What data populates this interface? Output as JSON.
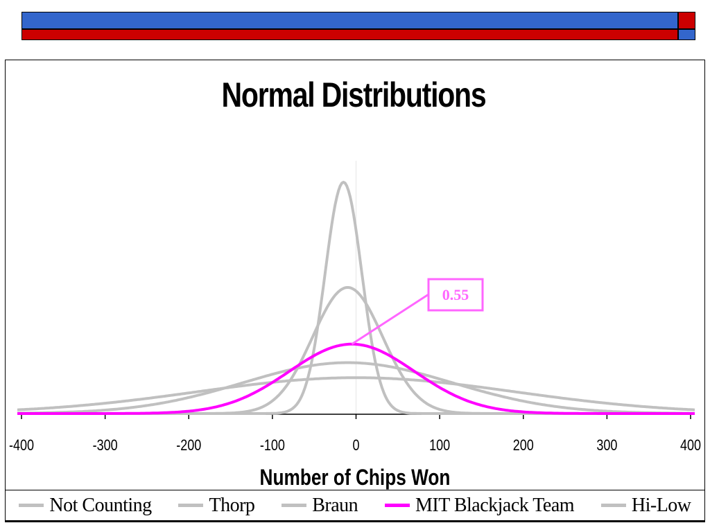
{
  "colors": {
    "band_blue": "#3366cc",
    "band_red": "#cc0000",
    "gray_series": "#c0c0c0",
    "mit_series": "#ff00ff",
    "callout": "#ff66ff"
  },
  "chart_data": {
    "type": "line",
    "title": "Normal Distributions",
    "xlabel": "Number of Chips Won",
    "ylabel": "",
    "xlim": [
      -400,
      400
    ],
    "x_ticks": [
      -400,
      -300,
      -200,
      -100,
      0,
      100,
      200,
      300,
      400
    ],
    "x_tick_labels": [
      "-400",
      "-300",
      "-200",
      "-100",
      "0",
      "100",
      "200",
      "300",
      "400"
    ],
    "grid": false,
    "legend_position": "bottom",
    "series": [
      {
        "name": "Not Counting",
        "mean": -15,
        "sd": 22,
        "peak": 1.0,
        "color": "#c0c0c0"
      },
      {
        "name": "Thorp",
        "mean": -10,
        "sd": 42,
        "peak": 0.545,
        "color": "#c0c0c0"
      },
      {
        "name": "Braun",
        "mean": -10,
        "sd": 125,
        "peak": 0.22,
        "color": "#c0c0c0"
      },
      {
        "name": "MIT Blackjack Team",
        "mean": -5,
        "sd": 75,
        "peak": 0.3,
        "color": "#ff00ff"
      },
      {
        "name": "Hi-Low",
        "mean": 0,
        "sd": 190,
        "peak": 0.155,
        "color": "#c0c0c0"
      }
    ],
    "annotations": [
      {
        "text": "0.55",
        "series": "MIT Blackjack Team",
        "x": -5,
        "y": 0.3
      }
    ]
  }
}
